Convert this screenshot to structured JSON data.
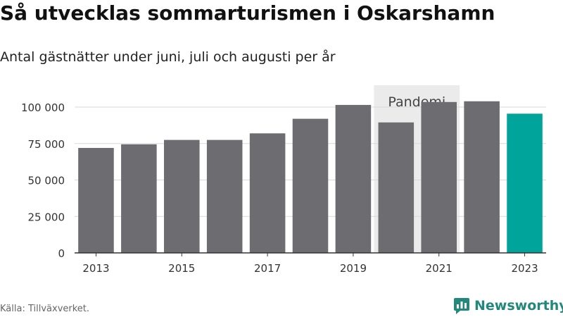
{
  "title": "Så utvecklas sommarturismen i Oskarshamn",
  "subtitle": "Antal gästnätter under juni, juli och augusti per år",
  "source": "Källa: Tillväxverket.",
  "logo": {
    "text": "Newsworthy",
    "icon": "newsworthy-chart-bubble-icon"
  },
  "colors": {
    "bar": "#6d6c71",
    "highlight": "#00a49a",
    "annotation_band": "#ebebeb",
    "logo": "#23887c"
  },
  "chart_data": {
    "type": "bar",
    "categories": [
      "2013",
      "2014",
      "2015",
      "2016",
      "2017",
      "2018",
      "2019",
      "2020",
      "2021",
      "2022",
      "2023"
    ],
    "values": [
      72000,
      74500,
      77500,
      77500,
      82000,
      92000,
      101500,
      89500,
      103500,
      104000,
      95500
    ],
    "highlight": "2023",
    "x_tick_labels": [
      "2013",
      "2015",
      "2017",
      "2019",
      "2021",
      "2023"
    ],
    "y_ticks": [
      0,
      25000,
      50000,
      75000,
      100000
    ],
    "y_tick_labels": [
      "0",
      "25 000",
      "50 000",
      "75 000",
      "100 000"
    ],
    "ylim": [
      0,
      115000
    ],
    "grid": true,
    "annotations": [
      {
        "label": "Pandemi",
        "from": "2020",
        "to": "2021"
      }
    ]
  }
}
